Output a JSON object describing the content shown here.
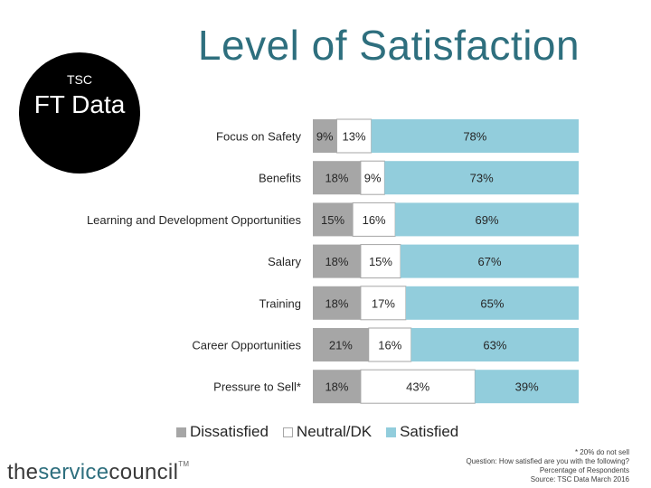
{
  "title": "Level of Satisfaction",
  "badge": {
    "small": "TSC",
    "big": "FT Data"
  },
  "colors": {
    "dissatisfied": "#a6a6a6",
    "neutral": "#ffffff",
    "satisfied": "#92cddc",
    "title": "#2e6f7e"
  },
  "chart_data": {
    "type": "bar",
    "orientation": "horizontal",
    "stacked": true,
    "categories": [
      "Focus on Safety",
      "Benefits",
      "Learning and Development Opportunities",
      "Salary",
      "Training",
      "Career Opportunities",
      "Pressure to Sell*"
    ],
    "series": [
      {
        "name": "Dissatisfied",
        "values": [
          9,
          18,
          15,
          18,
          18,
          21,
          18
        ]
      },
      {
        "name": "Neutral/DK",
        "values": [
          13,
          9,
          16,
          15,
          17,
          16,
          43
        ]
      },
      {
        "name": "Satisfied",
        "values": [
          78,
          73,
          69,
          67,
          65,
          63,
          39
        ]
      }
    ],
    "xlim": [
      0,
      100
    ],
    "legend_position": "bottom"
  },
  "legend": [
    "Dissatisfied",
    "Neutral/DK",
    "Satisfied"
  ],
  "footnotes": [
    "* 20% do not sell",
    "Question: How satisfied are you with the following?",
    "Percentage of Respondents",
    "Source: TSC Data March 2016"
  ],
  "logo": {
    "part1": "the",
    "part2": "service",
    "part3": "council",
    "tm": "TM"
  }
}
